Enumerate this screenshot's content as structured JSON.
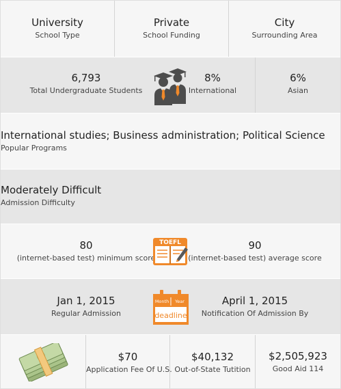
{
  "overview": {
    "school_type": {
      "value": "University",
      "label": "School Type"
    },
    "school_funding": {
      "value": "Private",
      "label": "School Funding"
    },
    "surrounding_area": {
      "value": "City",
      "label": "Surrounding Area"
    }
  },
  "students": {
    "undergrad": {
      "value": "6,793",
      "label": "Total Undergraduate Students"
    },
    "international": {
      "value": "8%",
      "label": "International"
    },
    "asian": {
      "value": "6%",
      "label": "Asian"
    }
  },
  "programs": {
    "value": "International studies; Business administration; Political Science",
    "label": "Popular Programs"
  },
  "admission": {
    "value": "Moderately Difficult",
    "label": "Admission Difficulty"
  },
  "toefl": {
    "icon_text": "TOEFL",
    "minimum": {
      "value": "80",
      "label": "(internet-based test) minimum score"
    },
    "average": {
      "value": "90",
      "label": "(internet-based test) average score"
    }
  },
  "deadline": {
    "icon_month": "Month",
    "icon_year": "Year",
    "icon_word": "deadline",
    "regular": {
      "value": "Jan 1, 2015",
      "label": "Regular Admission"
    },
    "notification": {
      "value": "April 1, 2015",
      "label": "Notification Of Admission By"
    }
  },
  "costs": {
    "application_fee": {
      "value": "$70",
      "label": "Application Fee Of U.S."
    },
    "tuition": {
      "value": "$40,132",
      "label": "Out-of-State Tutition"
    },
    "aid": {
      "value": "$2,505,923",
      "label": "Good Aid 114"
    }
  },
  "colors": {
    "accent": "#f0892a",
    "gray_cell": "#e6e6e6",
    "light_cell": "#f6f6f6"
  }
}
